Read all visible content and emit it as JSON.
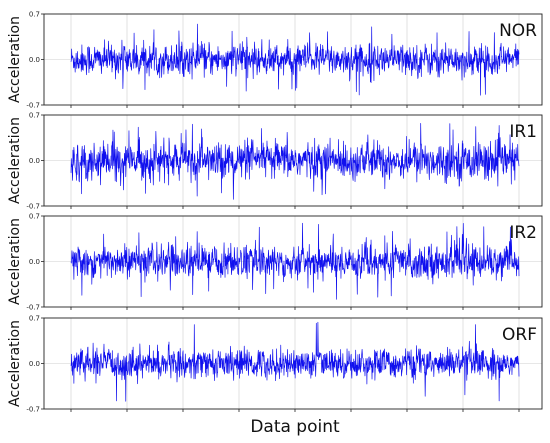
{
  "chart_data": {
    "type": "line",
    "xlabel": "Data point",
    "ylabel": "Acceleration",
    "ylim": [
      -0.7,
      0.7
    ],
    "yticks": [
      "0.7",
      "0.0",
      "-0.7"
    ],
    "grid": true,
    "series_color": "#1010ee",
    "panels": [
      {
        "name": "NOR",
        "amplitude": 0.28,
        "peak": 0.55
      },
      {
        "name": "IR1",
        "amplitude": 0.33,
        "peak": 0.62
      },
      {
        "name": "IR2",
        "amplitude": 0.3,
        "peak": 0.6
      },
      {
        "name": "ORF",
        "amplitude": 0.26,
        "peak": 0.66
      }
    ]
  }
}
